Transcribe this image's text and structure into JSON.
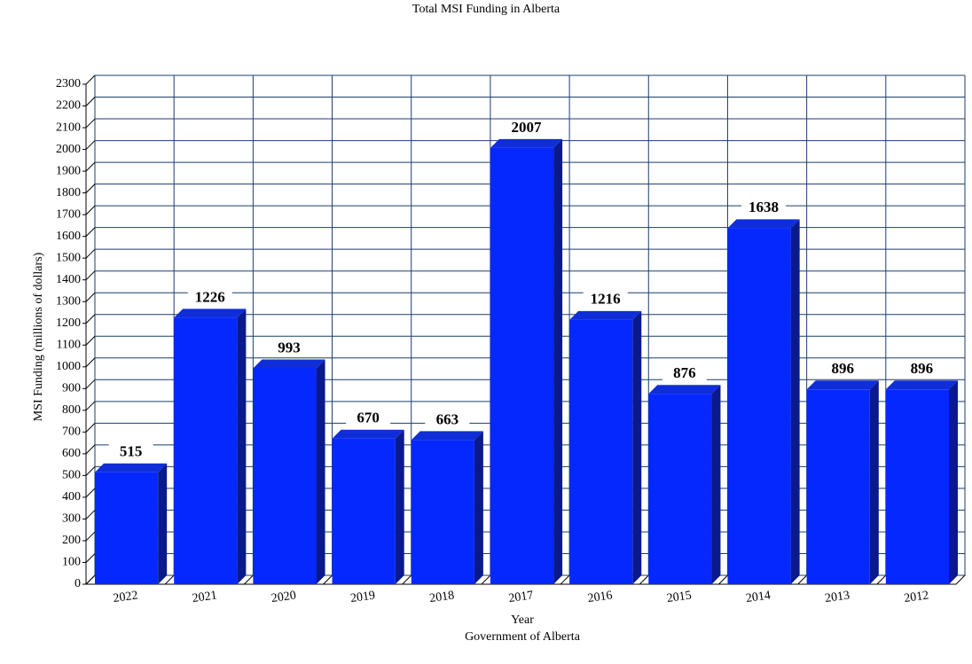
{
  "chart_data": {
    "type": "bar",
    "title": "Total MSI Funding in Alberta",
    "x_label": "Year",
    "y_label": "MSI Funding (millions of dollars)",
    "source": "Government of Alberta",
    "categories": [
      "2022",
      "2021",
      "2020",
      "2019",
      "2018",
      "2017",
      "2016",
      "2015",
      "2014",
      "2013",
      "2012"
    ],
    "values": [
      515,
      1226,
      993,
      670,
      663,
      2007,
      1216,
      876,
      1638,
      896,
      896
    ],
    "color": "#0528ff",
    "ylim": [
      0,
      2300
    ],
    "yticks": [
      0,
      100,
      200,
      300,
      400,
      500,
      600,
      700,
      800,
      900,
      1000,
      1100,
      1200,
      1300,
      1400,
      1500,
      1600,
      1700,
      1800,
      1900,
      2000,
      2100,
      2200,
      2300
    ],
    "grid": true
  }
}
